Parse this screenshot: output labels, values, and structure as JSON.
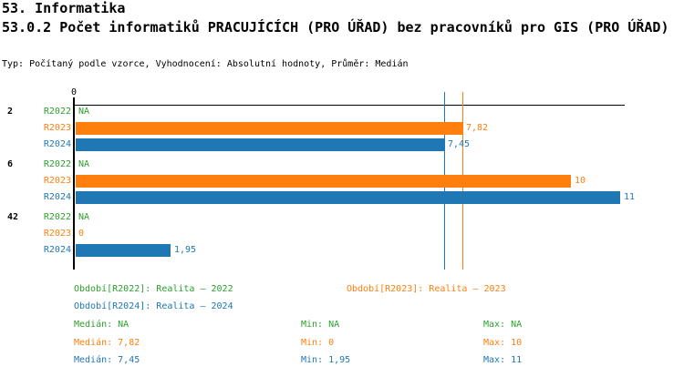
{
  "header": {
    "title1": "53. Informatika",
    "title2": "53.0.2 Počet informatiků PRACUJÍCÍCH (PRO ÚŘAD) bez pracovníků pro GIS (PRO ÚŘAD)",
    "meta": "Typ: Počítaný podle vzorce, Vyhodnocení: Absolutní hodnoty, Průměr: Medián"
  },
  "chart_data": {
    "type": "bar",
    "orientation": "horizontal",
    "title": "53.0.2 Počet informatiků PRACUJÍCÍCH (PRO ÚŘAD) bez pracovníků pro GIS (PRO ÚŘAD)",
    "x_range": [
      0,
      11.1
    ],
    "grid": false,
    "axis": {
      "zero_label": "0"
    },
    "series_names": [
      "R2022",
      "R2023",
      "R2024"
    ],
    "colors": {
      "R2022": "#2ca02c",
      "R2023": "#ff7f0e",
      "R2024": "#1f77b4",
      "axis": "#000000"
    },
    "groups": [
      {
        "label": "2",
        "rows": [
          {
            "series": "R2022",
            "value": null,
            "display": "NA"
          },
          {
            "series": "R2023",
            "value": 7.82,
            "display": "7,82"
          },
          {
            "series": "R2024",
            "value": 7.45,
            "display": "7,45"
          }
        ]
      },
      {
        "label": "6",
        "rows": [
          {
            "series": "R2022",
            "value": null,
            "display": "NA"
          },
          {
            "series": "R2023",
            "value": 10,
            "display": "10"
          },
          {
            "series": "R2024",
            "value": 11,
            "display": "11"
          }
        ]
      },
      {
        "label": "42",
        "rows": [
          {
            "series": "R2022",
            "value": null,
            "display": "NA"
          },
          {
            "series": "R2023",
            "value": 0,
            "display": "0"
          },
          {
            "series": "R2024",
            "value": 1.95,
            "display": "1,95"
          }
        ]
      }
    ],
    "medians": [
      {
        "series": "R2023",
        "value": 7.82
      },
      {
        "series": "R2024",
        "value": 7.45
      }
    ]
  },
  "legend": {
    "items": [
      {
        "series": "R2022",
        "label": "Období[R2022]: Realita – 2022"
      },
      {
        "series": "R2023",
        "label": "Období[R2023]: Realita – 2023"
      },
      {
        "series": "R2024",
        "label": "Období[R2024]: Realita – 2024"
      }
    ]
  },
  "stats": {
    "rows": [
      {
        "series": "R2022",
        "median": "Medián: NA",
        "min": "Min: NA",
        "max": "Max: NA"
      },
      {
        "series": "R2023",
        "median": "Medián: 7,82",
        "min": "Min: 0",
        "max": "Max: 10"
      },
      {
        "series": "R2024",
        "median": "Medián: 7,45",
        "min": "Min: 1,95",
        "max": "Max: 11"
      }
    ]
  }
}
